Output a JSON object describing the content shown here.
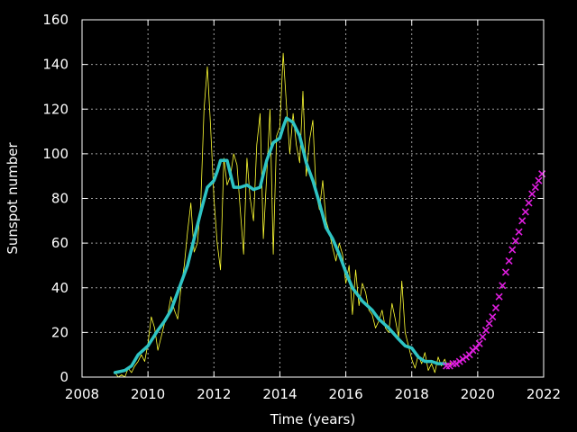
{
  "chart_data": {
    "type": "line",
    "xlabel": "Time (years)",
    "ylabel": "Sunspot number",
    "xlim": [
      2008,
      2022
    ],
    "ylim": [
      0,
      160
    ],
    "x_ticks": [
      "2008",
      "2010",
      "2012",
      "2014",
      "2016",
      "2018",
      "2020",
      "2022"
    ],
    "y_ticks": [
      "0",
      "20",
      "40",
      "60",
      "80",
      "100",
      "120",
      "140",
      "160"
    ],
    "grid": true,
    "legend": "none",
    "colors": {
      "background": "#000000",
      "frame": "#ffffff",
      "grid": "#a0a0a0",
      "monthly": "#ffff33",
      "smoothed": "#2ec4c4",
      "predicted": "#e01ee0"
    },
    "series": [
      {
        "key": "monthly",
        "style": "thin-line",
        "x": [
          2009.0,
          2009.1,
          2009.2,
          2009.3,
          2009.4,
          2009.5,
          2009.6,
          2009.7,
          2009.8,
          2009.9,
          2010.0,
          2010.1,
          2010.2,
          2010.3,
          2010.4,
          2010.5,
          2010.6,
          2010.7,
          2010.8,
          2010.9,
          2011.0,
          2011.1,
          2011.2,
          2011.3,
          2011.4,
          2011.5,
          2011.6,
          2011.7,
          2011.8,
          2011.9,
          2012.0,
          2012.1,
          2012.2,
          2012.3,
          2012.4,
          2012.5,
          2012.6,
          2012.7,
          2012.8,
          2012.9,
          2013.0,
          2013.1,
          2013.2,
          2013.3,
          2013.4,
          2013.5,
          2013.6,
          2013.7,
          2013.8,
          2013.9,
          2014.0,
          2014.1,
          2014.2,
          2014.3,
          2014.4,
          2014.5,
          2014.6,
          2014.7,
          2014.8,
          2014.9,
          2015.0,
          2015.1,
          2015.2,
          2015.3,
          2015.4,
          2015.5,
          2015.6,
          2015.7,
          2015.8,
          2015.9,
          2016.0,
          2016.1,
          2016.2,
          2016.3,
          2016.4,
          2016.5,
          2016.6,
          2016.7,
          2016.8,
          2016.9,
          2017.0,
          2017.1,
          2017.2,
          2017.3,
          2017.4,
          2017.5,
          2017.6,
          2017.7,
          2017.8,
          2017.9,
          2018.0,
          2018.1,
          2018.2,
          2018.3,
          2018.4,
          2018.5,
          2018.6,
          2018.7,
          2018.8,
          2018.9,
          2019.0,
          2019.1,
          2019.2
        ],
        "y": [
          2,
          0,
          1,
          0,
          4,
          2,
          5,
          7,
          10,
          7,
          15,
          27,
          22,
          12,
          18,
          24,
          28,
          36,
          30,
          26,
          40,
          50,
          65,
          78,
          56,
          60,
          78,
          120,
          139,
          112,
          80,
          60,
          48,
          98,
          86,
          90,
          100,
          95,
          75,
          55,
          98,
          80,
          70,
          104,
          118,
          62,
          90,
          120,
          55,
          108,
          112,
          145,
          122,
          100,
          118,
          104,
          96,
          128,
          90,
          106,
          115,
          82,
          75,
          88,
          70,
          65,
          58,
          52,
          60,
          55,
          42,
          50,
          28,
          48,
          32,
          42,
          38,
          30,
          28,
          22,
          25,
          30,
          22,
          20,
          33,
          26,
          18,
          43,
          20,
          14,
          8,
          4,
          10,
          6,
          11,
          3,
          6,
          2,
          9,
          5,
          8,
          4,
          7
        ]
      },
      {
        "key": "smoothed",
        "style": "thick-line",
        "x": [
          2009.0,
          2009.3,
          2009.5,
          2009.7,
          2010.0,
          2010.3,
          2010.5,
          2010.7,
          2011.0,
          2011.2,
          2011.4,
          2011.6,
          2011.8,
          2012.0,
          2012.1,
          2012.2,
          2012.4,
          2012.6,
          2012.8,
          2013.0,
          2013.2,
          2013.4,
          2013.6,
          2013.8,
          2014.0,
          2014.1,
          2014.2,
          2014.4,
          2014.6,
          2014.8,
          2015.0,
          2015.2,
          2015.4,
          2015.6,
          2015.8,
          2016.0,
          2016.2,
          2016.5,
          2016.8,
          2017.0,
          2017.3,
          2017.6,
          2017.8,
          2018.0,
          2018.2,
          2018.4,
          2018.6,
          2018.8,
          2019.0
        ],
        "y": [
          2,
          3,
          5,
          10,
          14,
          21,
          25,
          30,
          42,
          50,
          62,
          74,
          85,
          88,
          92,
          97,
          97,
          85,
          85,
          86,
          84,
          85,
          97,
          105,
          107,
          112,
          116,
          114,
          108,
          96,
          88,
          78,
          67,
          62,
          55,
          47,
          40,
          34,
          30,
          26,
          22,
          17,
          14,
          13,
          9,
          7,
          7,
          6,
          6
        ]
      },
      {
        "key": "predicted",
        "style": "x-markers",
        "x": [
          2019.05,
          2019.15,
          2019.25,
          2019.35,
          2019.45,
          2019.55,
          2019.65,
          2019.75,
          2019.85,
          2019.95,
          2020.05,
          2020.15,
          2020.25,
          2020.35,
          2020.45,
          2020.55,
          2020.65,
          2020.75,
          2020.85,
          2020.95,
          2021.05,
          2021.15,
          2021.25,
          2021.35,
          2021.45,
          2021.55,
          2021.65,
          2021.75,
          2021.85,
          2021.95
        ],
        "y": [
          5,
          5,
          6,
          6,
          7,
          8,
          9,
          10,
          12,
          13,
          15,
          18,
          21,
          24,
          27,
          31,
          36,
          41,
          47,
          52,
          57,
          61,
          65,
          70,
          74,
          78,
          82,
          85,
          88,
          91
        ]
      }
    ]
  }
}
